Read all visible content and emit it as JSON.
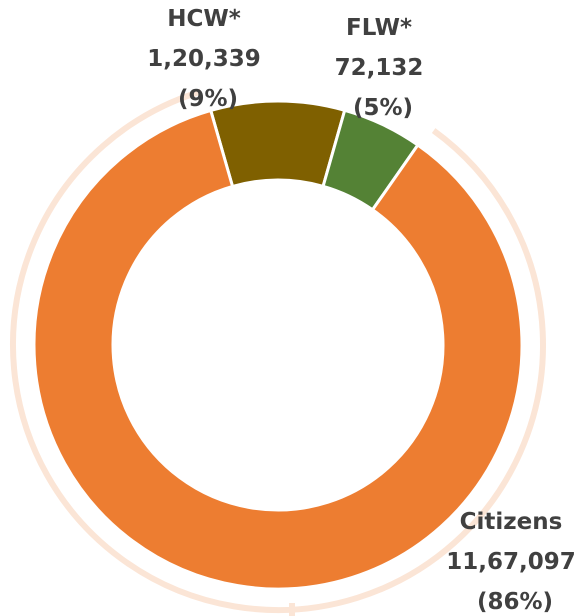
{
  "chart_data": {
    "type": "pie",
    "variant": "donut",
    "slices": [
      {
        "name": "HCW*",
        "value": 120339,
        "value_label": "1,20,339",
        "percent_label": "(9%)",
        "color": "#7f6000"
      },
      {
        "name": "FLW*",
        "value": 72132,
        "value_label": "72,132",
        "percent_label": "(5%)",
        "color": "#548235"
      },
      {
        "name": "Citizens",
        "value": 1167097,
        "value_label": "11,67,097",
        "percent_label": "(86%)",
        "color": "#ed7d31"
      }
    ],
    "outer_ring_color": "#fbe5d6",
    "slice_border_color": "#ffffff",
    "label_color": "#404040",
    "legend": "none"
  }
}
